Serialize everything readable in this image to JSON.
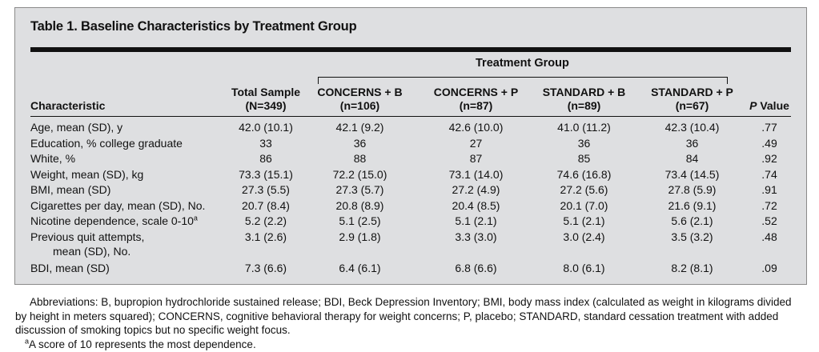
{
  "title": "Table 1. Baseline Characteristics by Treatment Group",
  "group_label": "Treatment Group",
  "headers": {
    "characteristic": "Characteristic",
    "total": [
      "Total Sample",
      "(N=349)"
    ],
    "concerns_b": [
      "CONCERNS + B",
      "(n=106)"
    ],
    "concerns_p": [
      "CONCERNS + P",
      "(n=87)"
    ],
    "standard_b": [
      "STANDARD + B",
      "(n=89)"
    ],
    "standard_p": [
      "STANDARD + P",
      "(n=67)"
    ],
    "p_italic": "P",
    "p_rest": " Value"
  },
  "rows": [
    {
      "label": "Age, mean (SD), y",
      "total": "42.0 (10.1)",
      "cb": "42.1 (9.2)",
      "cp": "42.6 (10.0)",
      "sb": "41.0 (11.2)",
      "sp": "42.3 (10.4)",
      "p": ".77"
    },
    {
      "label": "Education, % college graduate",
      "total": "33",
      "cb": "36",
      "cp": "27",
      "sb": "36",
      "sp": "36",
      "p": ".49"
    },
    {
      "label": "White, %",
      "total": "86",
      "cb": "88",
      "cp": "87",
      "sb": "85",
      "sp": "84",
      "p": ".92"
    },
    {
      "label": "Weight, mean (SD), kg",
      "total": "73.3 (15.1)",
      "cb": "72.2 (15.0)",
      "cp": "73.1 (14.0)",
      "sb": "74.6 (16.8)",
      "sp": "73.4 (14.5)",
      "p": ".74"
    },
    {
      "label": "BMI, mean (SD)",
      "total": "27.3 (5.5)",
      "cb": "27.3 (5.7)",
      "cp": "27.2 (4.9)",
      "sb": "27.2 (5.6)",
      "sp": "27.8 (5.9)",
      "p": ".91"
    },
    {
      "label": "Cigarettes per day, mean (SD), No.",
      "total": "20.7 (8.4)",
      "cb": "20.8 (8.9)",
      "cp": "20.4 (8.5)",
      "sb": "20.1 (7.0)",
      "sp": "21.6 (9.1)",
      "p": ".72"
    },
    {
      "label": "Nicotine dependence, scale 0-10",
      "label_sup": "a",
      "total": "5.2 (2.2)",
      "cb": "5.1 (2.5)",
      "cp": "5.1 (2.1)",
      "sb": "5.1 (2.1)",
      "sp": "5.6 (2.1)",
      "p": ".52"
    },
    {
      "label": "Previous quit attempts,",
      "label2": "mean (SD), No.",
      "total": "3.1 (2.6)",
      "cb": "2.9 (1.8)",
      "cp": "3.3 (3.0)",
      "sb": "3.0 (2.4)",
      "sp": "3.5 (3.2)",
      "p": ".48"
    },
    {
      "label": "BDI, mean (SD)",
      "total": "7.3 (6.6)",
      "cb": "6.4 (6.1)",
      "cp": "6.8 (6.6)",
      "sb": "8.0 (6.1)",
      "sp": "8.2 (8.1)",
      "p": ".09"
    }
  ],
  "footnotes": {
    "abbreviations_1": "Abbreviations: B, bupropion hydrochloride sustained release; BDI, Beck Depression Inventory; BMI, body mass index (calculated as weight in kilograms divided",
    "abbreviations_2": "by height in meters squared); CONCERNS, cognitive behavioral therapy for weight concerns; P, placebo; STANDARD, standard cessation treatment with added",
    "abbreviations_3": "discussion of smoking topics but no specific weight focus.",
    "note_sup": "a",
    "note_text": "A score of 10 represents the most dependence."
  },
  "colors": {
    "panel_background": "#dedfe1",
    "text": "#111111"
  }
}
